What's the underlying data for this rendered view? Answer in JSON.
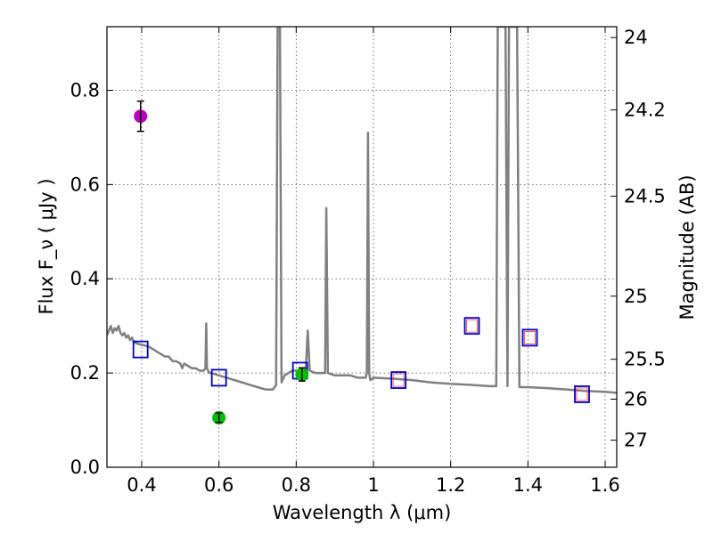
{
  "chart_data": {
    "type": "scatter",
    "xlabel": "Wavelength  λ (μm)",
    "ylabel": "Flux  F_ν  ( μJy )",
    "ylabel_right": "Magnitude (AB)",
    "xlim": [
      0.31,
      1.63
    ],
    "ylim": [
      0.0,
      0.935
    ],
    "x_ticks": [
      0.4,
      0.6,
      0.8,
      1.0,
      1.2,
      1.4,
      1.6
    ],
    "x_tick_labels": [
      "0.4",
      "0.6",
      "0.8",
      "1",
      "1.2",
      "1.4",
      "1.6"
    ],
    "y_ticks": [
      0.0,
      0.2,
      0.4,
      0.6,
      0.8
    ],
    "y_tick_labels": [
      "0.0",
      "0.2",
      "0.4",
      "0.6",
      "0.8"
    ],
    "right_ticks": [
      {
        "label": "24",
        "flux": 0.912
      },
      {
        "label": "24.2",
        "flux": 0.7586
      },
      {
        "label": "24.5",
        "flux": 0.5754
      },
      {
        "label": "25",
        "flux": 0.3631
      },
      {
        "label": "25.5",
        "flux": 0.2291
      },
      {
        "label": "26",
        "flux": 0.1445
      },
      {
        "label": "27",
        "flux": 0.0575
      }
    ],
    "grid": true,
    "series": [
      {
        "name": "model_spectrum",
        "kind": "line",
        "color": "#808080",
        "points": [
          [
            0.31,
            0.28
          ],
          [
            0.315,
            0.29
          ],
          [
            0.32,
            0.3
          ],
          [
            0.325,
            0.285
          ],
          [
            0.33,
            0.295
          ],
          [
            0.335,
            0.29
          ],
          [
            0.34,
            0.3
          ],
          [
            0.345,
            0.285
          ],
          [
            0.35,
            0.28
          ],
          [
            0.355,
            0.285
          ],
          [
            0.36,
            0.275
          ],
          [
            0.365,
            0.28
          ],
          [
            0.37,
            0.27
          ],
          [
            0.375,
            0.275
          ],
          [
            0.38,
            0.265
          ],
          [
            0.39,
            0.262
          ],
          [
            0.4,
            0.26
          ],
          [
            0.41,
            0.258
          ],
          [
            0.42,
            0.255
          ],
          [
            0.43,
            0.25
          ],
          [
            0.44,
            0.245
          ],
          [
            0.45,
            0.24
          ],
          [
            0.46,
            0.235
          ],
          [
            0.47,
            0.235
          ],
          [
            0.48,
            0.225
          ],
          [
            0.49,
            0.225
          ],
          [
            0.5,
            0.22
          ],
          [
            0.505,
            0.21
          ],
          [
            0.51,
            0.22
          ],
          [
            0.52,
            0.215
          ],
          [
            0.53,
            0.21
          ],
          [
            0.54,
            0.21
          ],
          [
            0.55,
            0.205
          ],
          [
            0.56,
            0.205
          ],
          [
            0.565,
            0.21
          ],
          [
            0.567,
            0.305
          ],
          [
            0.569,
            0.21
          ],
          [
            0.575,
            0.2
          ],
          [
            0.58,
            0.2
          ],
          [
            0.6,
            0.195
          ],
          [
            0.62,
            0.19
          ],
          [
            0.64,
            0.185
          ],
          [
            0.66,
            0.18
          ],
          [
            0.68,
            0.175
          ],
          [
            0.7,
            0.17
          ],
          [
            0.72,
            0.165
          ],
          [
            0.74,
            0.165
          ],
          [
            0.748,
            0.175
          ],
          [
            0.752,
            0.935
          ],
          [
            0.758,
            0.935
          ],
          [
            0.762,
            0.18
          ],
          [
            0.77,
            0.195
          ],
          [
            0.78,
            0.2
          ],
          [
            0.79,
            0.205
          ],
          [
            0.8,
            0.205
          ],
          [
            0.81,
            0.205
          ],
          [
            0.82,
            0.205
          ],
          [
            0.825,
            0.21
          ],
          [
            0.83,
            0.29
          ],
          [
            0.835,
            0.205
          ],
          [
            0.85,
            0.2
          ],
          [
            0.87,
            0.2
          ],
          [
            0.875,
            0.2
          ],
          [
            0.878,
            0.55
          ],
          [
            0.882,
            0.2
          ],
          [
            0.9,
            0.195
          ],
          [
            0.92,
            0.195
          ],
          [
            0.94,
            0.195
          ],
          [
            0.96,
            0.19
          ],
          [
            0.98,
            0.19
          ],
          [
            0.983,
            0.2
          ],
          [
            0.986,
            0.71
          ],
          [
            0.989,
            0.2
          ],
          [
            0.992,
            0.185
          ],
          [
            1.0,
            0.19
          ],
          [
            1.05,
            0.188
          ],
          [
            1.1,
            0.185
          ],
          [
            1.15,
            0.18
          ],
          [
            1.2,
            0.177
          ],
          [
            1.25,
            0.175
          ],
          [
            1.3,
            0.172
          ],
          [
            1.318,
            0.172
          ],
          [
            1.322,
            0.935
          ],
          [
            1.342,
            0.935
          ],
          [
            1.347,
            0.172
          ],
          [
            1.351,
            0.935
          ],
          [
            1.372,
            0.935
          ],
          [
            1.378,
            0.17
          ],
          [
            1.4,
            0.17
          ],
          [
            1.45,
            0.168
          ],
          [
            1.5,
            0.165
          ],
          [
            1.55,
            0.162
          ],
          [
            1.6,
            0.16
          ],
          [
            1.63,
            0.158
          ]
        ]
      },
      {
        "name": "model_photometry",
        "kind": "square-blue",
        "points": [
          [
            0.397,
            0.25
          ],
          [
            0.6,
            0.19
          ],
          [
            0.81,
            0.205
          ],
          [
            1.065,
            0.185
          ],
          [
            1.255,
            0.3
          ],
          [
            1.405,
            0.275
          ],
          [
            1.54,
            0.155
          ]
        ]
      },
      {
        "name": "model_photometry_red",
        "kind": "square-red",
        "points": [
          [
            1.065,
            0.185
          ],
          [
            1.255,
            0.3
          ],
          [
            1.405,
            0.275
          ],
          [
            1.54,
            0.155
          ]
        ]
      },
      {
        "name": "observed_magenta",
        "kind": "circle",
        "color": "#bf00bf",
        "points": [
          [
            0.397,
            0.745
          ]
        ],
        "errors": [
          0.032
        ]
      },
      {
        "name": "observed_green",
        "kind": "circle",
        "color": "#00c000",
        "points": [
          [
            0.6,
            0.105
          ],
          [
            0.815,
            0.197
          ]
        ],
        "errors": [
          0.01,
          0.014
        ]
      }
    ]
  }
}
